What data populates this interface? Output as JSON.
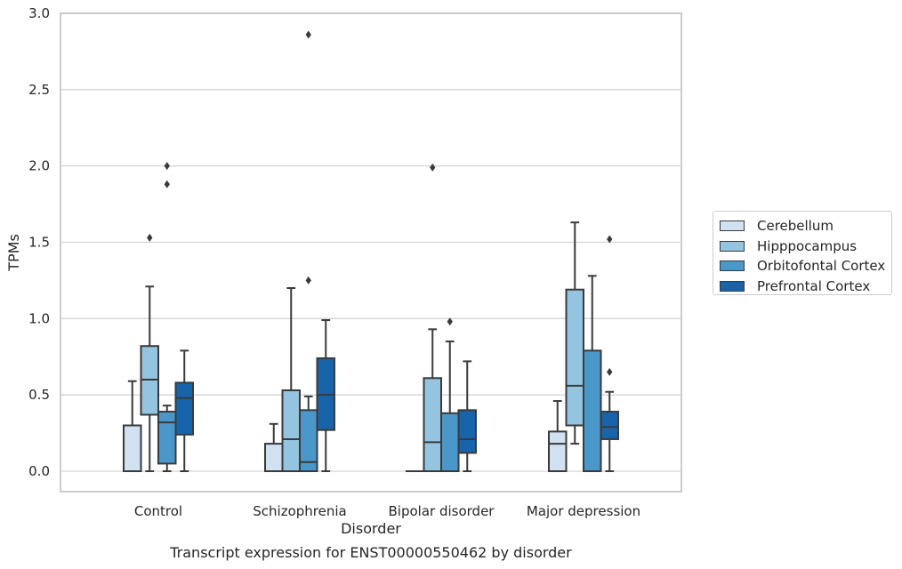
{
  "chart_data": {
    "type": "box",
    "title": "Transcript expression for ENST00000550462 by disorder",
    "xlabel": "Disorder",
    "ylabel": "TPMs",
    "ylim": [
      -0.14,
      3.0
    ],
    "yticks": [
      "0.0",
      "0.5",
      "1.0",
      "1.5",
      "2.0",
      "2.5",
      "3.0"
    ],
    "grid": "horizontal",
    "legend_placement": "outside-right",
    "categories": [
      "Control",
      "Schizophrenia",
      "Bipolar disorder",
      "Major depression"
    ],
    "series": [
      {
        "name": "Cerebellum",
        "color": "#d0e1f2",
        "boxes": [
          {
            "whislo": 0.0,
            "q1": 0.0,
            "median": 0.0,
            "q3": 0.3,
            "whishi": 0.59,
            "fliers": []
          },
          {
            "whislo": 0.0,
            "q1": 0.0,
            "median": 0.0,
            "q3": 0.18,
            "whishi": 0.31,
            "fliers": []
          },
          {
            "whislo": 0.0,
            "q1": 0.0,
            "median": 0.0,
            "q3": 0.0,
            "whishi": 0.0,
            "fliers": []
          },
          {
            "whislo": 0.0,
            "q1": 0.0,
            "median": 0.18,
            "q3": 0.26,
            "whishi": 0.46,
            "fliers": []
          }
        ]
      },
      {
        "name": "Hipppocampus",
        "color": "#94c4df",
        "boxes": [
          {
            "whislo": 0.0,
            "q1": 0.37,
            "median": 0.6,
            "q3": 0.82,
            "whishi": 1.21,
            "fliers": [
              1.53
            ]
          },
          {
            "whislo": 0.0,
            "q1": 0.0,
            "median": 0.21,
            "q3": 0.53,
            "whishi": 1.2,
            "fliers": []
          },
          {
            "whislo": 0.0,
            "q1": 0.0,
            "median": 0.19,
            "q3": 0.61,
            "whishi": 0.93,
            "fliers": [
              1.99
            ]
          },
          {
            "whislo": 0.18,
            "q1": 0.3,
            "median": 0.56,
            "q3": 1.19,
            "whishi": 1.63,
            "fliers": []
          }
        ]
      },
      {
        "name": "Orbitofontal Cortex",
        "color": "#4a98c9",
        "boxes": [
          {
            "whislo": 0.0,
            "q1": 0.05,
            "median": 0.32,
            "q3": 0.39,
            "whishi": 0.43,
            "fliers": [
              1.88,
              2.0
            ]
          },
          {
            "whislo": 0.0,
            "q1": 0.0,
            "median": 0.06,
            "q3": 0.4,
            "whishi": 0.49,
            "fliers": [
              1.25,
              2.86
            ]
          },
          {
            "whislo": 0.0,
            "q1": 0.0,
            "median": 0.0,
            "q3": 0.38,
            "whishi": 0.85,
            "fliers": [
              0.98
            ]
          },
          {
            "whislo": 0.0,
            "q1": 0.0,
            "median": 0.0,
            "q3": 0.79,
            "whishi": 1.28,
            "fliers": []
          }
        ]
      },
      {
        "name": "Prefrontal Cortex",
        "color": "#1764ab",
        "boxes": [
          {
            "whislo": 0.0,
            "q1": 0.24,
            "median": 0.48,
            "q3": 0.58,
            "whishi": 0.79,
            "fliers": []
          },
          {
            "whislo": 0.0,
            "q1": 0.27,
            "median": 0.5,
            "q3": 0.74,
            "whishi": 0.99,
            "fliers": []
          },
          {
            "whislo": 0.0,
            "q1": 0.12,
            "median": 0.21,
            "q3": 0.4,
            "whishi": 0.72,
            "fliers": []
          },
          {
            "whislo": 0.0,
            "q1": 0.21,
            "median": 0.29,
            "q3": 0.39,
            "whishi": 0.52,
            "fliers": [
              0.65,
              1.52
            ]
          }
        ]
      }
    ]
  }
}
